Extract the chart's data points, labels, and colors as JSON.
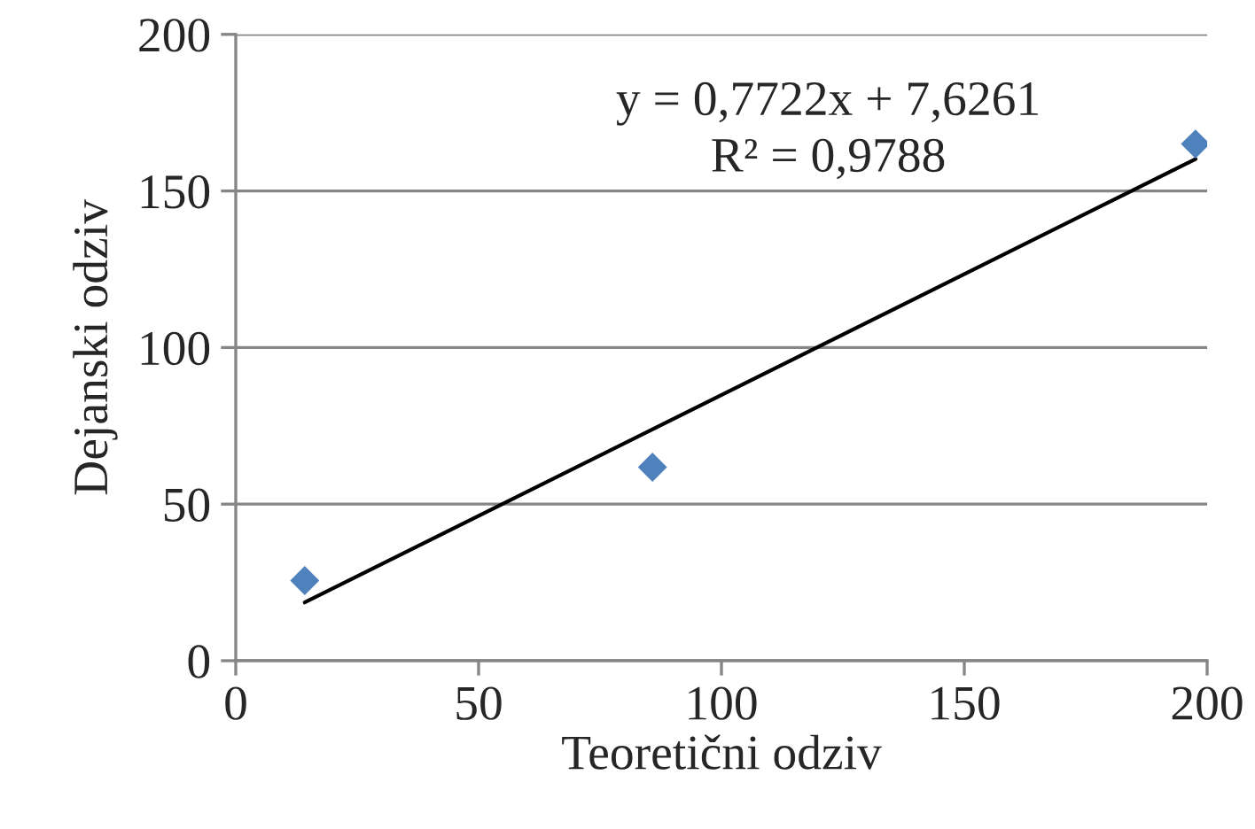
{
  "chart_data": {
    "type": "scatter",
    "xlabel": "Teoretični odziv",
    "ylabel": "Dejanski odziv",
    "series": [
      {
        "color": "#4f81bd",
        "marker": "diamond",
        "x": [
          14.2,
          85.8,
          197.6
        ],
        "values": [
          25.6,
          61.8,
          165
        ]
      },
      {
        "type": "line",
        "color": "#000000",
        "marker": "none",
        "x": [
          14.2,
          197.6
        ],
        "values": [
          18.6,
          160.2
        ]
      }
    ],
    "annotations": [
      "y = 0,7722x + 7,6261",
      "R² = 0,9788"
    ],
    "xlim": [
      0,
      200
    ],
    "xticks": [
      0,
      50,
      100,
      150,
      200
    ],
    "ylim": [
      0,
      200
    ],
    "yticks": [
      0,
      50,
      100,
      150,
      200
    ],
    "grid": "y",
    "legend": false
  }
}
